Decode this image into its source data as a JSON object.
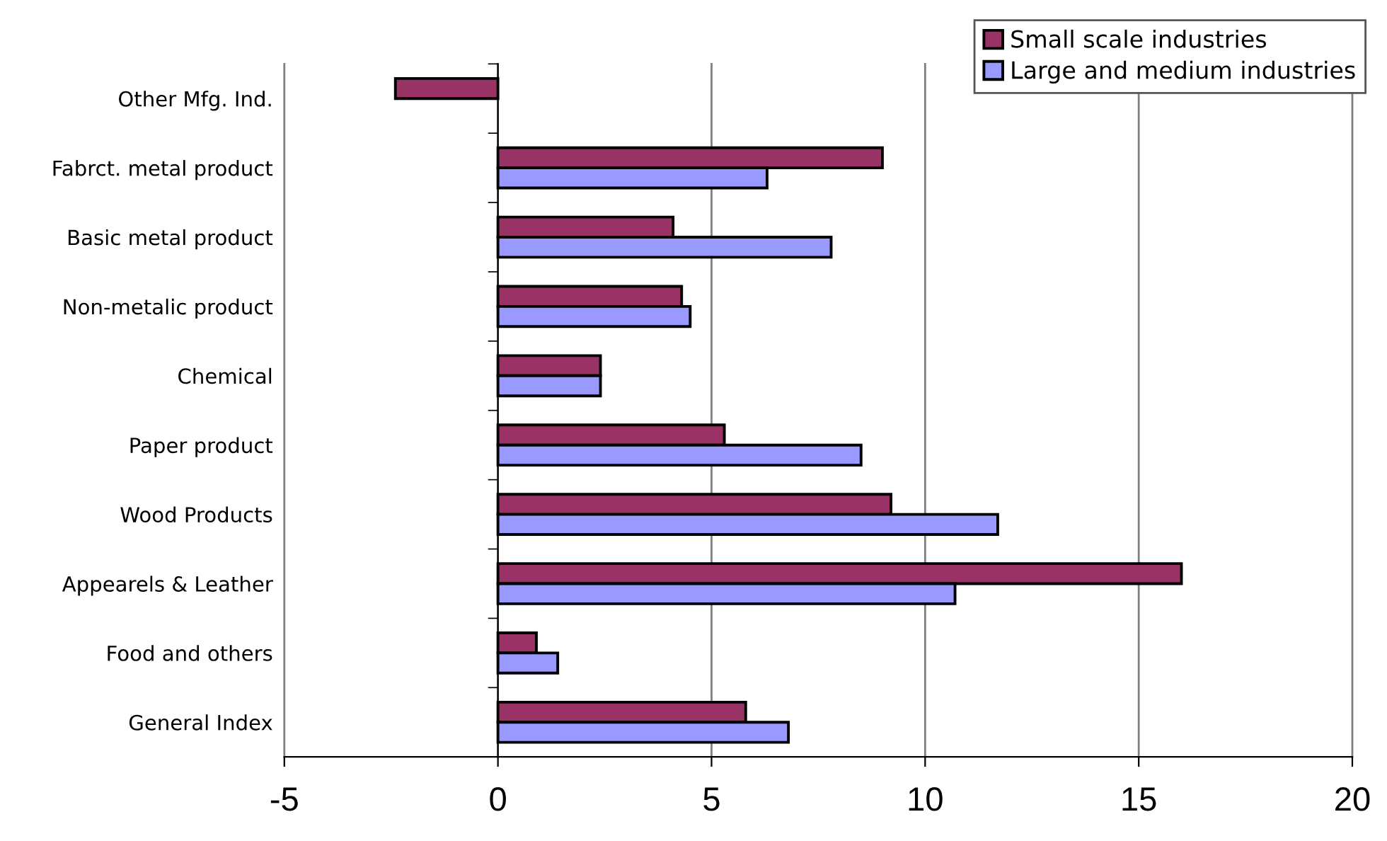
{
  "chart_data": {
    "type": "bar",
    "orientation": "horizontal",
    "categories": [
      "Other Mfg. Ind.",
      "Fabrct. metal product",
      "Basic metal product",
      "Non-metalic product",
      "Chemical",
      "Paper product",
      "Wood Products",
      "Appearels & Leather",
      "Food and others",
      "General Index"
    ],
    "series": [
      {
        "name": "Small scale industries",
        "color": "#993366",
        "values": [
          -2.4,
          9.0,
          4.1,
          4.3,
          2.4,
          5.3,
          9.2,
          16.0,
          0.9,
          5.8
        ]
      },
      {
        "name": "Large and medium industries",
        "color": "#9999ff",
        "values": [
          null,
          6.3,
          7.8,
          4.5,
          2.4,
          8.5,
          11.7,
          10.7,
          1.4,
          6.8
        ]
      }
    ],
    "xlim": [
      -5,
      20
    ],
    "xticks": [
      -5,
      0,
      5,
      10,
      15,
      20
    ],
    "grid": "x",
    "legend": "top right"
  }
}
